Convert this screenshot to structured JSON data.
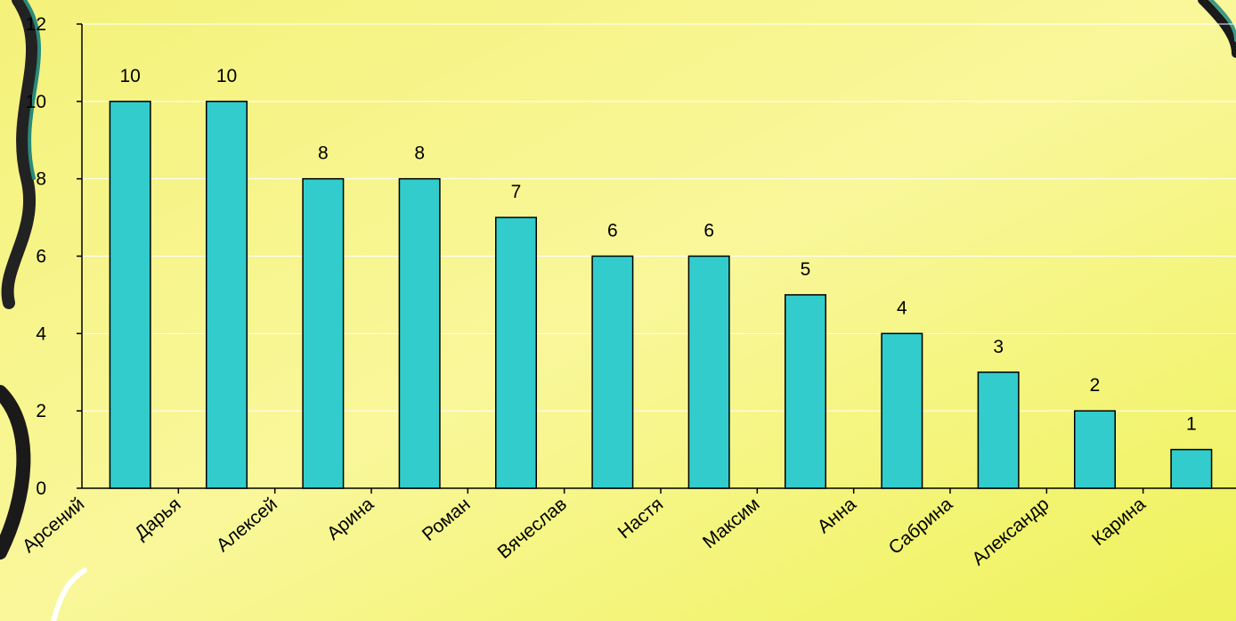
{
  "chart_data": {
    "type": "bar",
    "categories": [
      "Арсений",
      "Дарья",
      "Алексей",
      "Арина",
      "Роман",
      "Вячеслав",
      "Настя",
      "Максим",
      "Анна",
      "Сабрина",
      "Александр",
      "Карина"
    ],
    "values": [
      10,
      10,
      8,
      8,
      7,
      6,
      6,
      5,
      4,
      3,
      2,
      1
    ],
    "color": "#33cccc",
    "ylim": [
      0,
      12
    ],
    "yticks": [
      0,
      2,
      4,
      6,
      8,
      10,
      12
    ],
    "grid": true
  }
}
